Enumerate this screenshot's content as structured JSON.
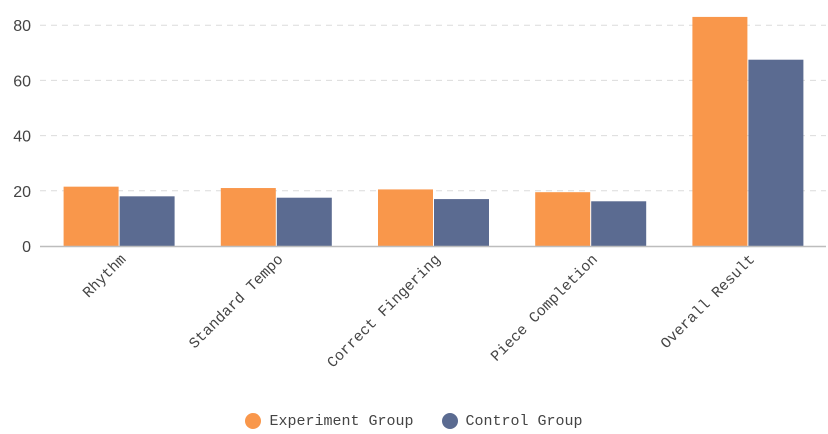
{
  "chart_data": {
    "type": "bar",
    "categories": [
      "Rhythm",
      "Standard Tempo",
      "Correct Fingering",
      "Piece Completion",
      "Overall Result"
    ],
    "series": [
      {
        "name": "Experiment Group",
        "values": [
          21.5,
          21,
          20.5,
          19.5,
          83
        ],
        "color": "#f9974b"
      },
      {
        "name": "Control Group",
        "values": [
          18,
          17.5,
          17,
          16.2,
          67.5
        ],
        "color": "#5b6b91"
      }
    ],
    "title": "",
    "xlabel": "",
    "ylabel": "",
    "ylim": [
      0,
      85
    ],
    "yticks": [
      0,
      20,
      40,
      60,
      80
    ],
    "grid": true,
    "legend_position": "bottom"
  }
}
